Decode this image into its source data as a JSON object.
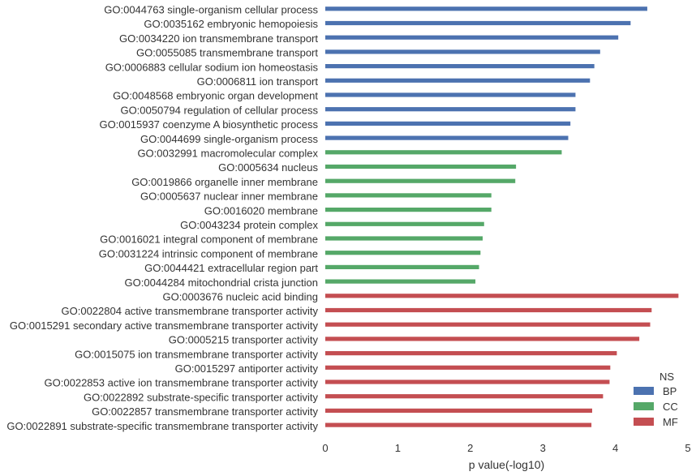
{
  "chart_data": {
    "type": "bar",
    "orientation": "horizontal",
    "xlabel": "p value(-log10)",
    "ylabel": "",
    "xlim": [
      0,
      5
    ],
    "xticks": [
      "0",
      "1",
      "2",
      "3",
      "4",
      "5"
    ],
    "grid": false,
    "legend": {
      "title": "NS",
      "placement": "bottom-right",
      "entries": [
        {
          "name": "BP",
          "color": "#4c72b0"
        },
        {
          "name": "CC",
          "color": "#55a868"
        },
        {
          "name": "MF",
          "color": "#c44e52"
        }
      ]
    },
    "categories": [
      "GO:0044763 single-organism cellular process",
      "GO:0035162 embryonic hemopoiesis",
      "GO:0034220 ion transmembrane transport",
      "GO:0055085 transmembrane transport",
      "GO:0006883 cellular sodium ion homeostasis",
      "GO:0006811 ion transport",
      "GO:0048568 embryonic organ development",
      "GO:0050794 regulation of cellular process",
      "GO:0015937 coenzyme A biosynthetic process",
      "GO:0044699 single-organism process",
      "GO:0032991 macromolecular complex",
      "GO:0005634 nucleus",
      "GO:0019866 organelle inner membrane",
      "GO:0005637 nuclear inner membrane",
      "GO:0016020 membrane",
      "GO:0043234 protein complex",
      "GO:0016021 integral component of membrane",
      "GO:0031224 intrinsic component of membrane",
      "GO:0044421 extracellular region part",
      "GO:0044284 mitochondrial crista junction",
      "GO:0003676 nucleic acid binding",
      "GO:0022804 active transmembrane transporter activity",
      "GO:0015291 secondary active transmembrane transporter activity",
      "GO:0005215 transporter activity",
      "GO:0015075 ion transmembrane transporter activity",
      "GO:0015297 antiporter activity",
      "GO:0022853 active ion transmembrane transporter activity",
      "GO:0022892 substrate-specific transporter activity",
      "GO:0022857 transmembrane transporter activity",
      "GO:0022891 substrate-specific transmembrane transporter activity"
    ],
    "values": [
      4.44,
      4.21,
      4.04,
      3.79,
      3.71,
      3.65,
      3.45,
      3.45,
      3.38,
      3.35,
      3.26,
      2.63,
      2.62,
      2.29,
      2.29,
      2.19,
      2.17,
      2.14,
      2.12,
      2.07,
      4.87,
      4.5,
      4.48,
      4.33,
      4.02,
      3.93,
      3.92,
      3.83,
      3.68,
      3.67
    ],
    "groups": [
      "BP",
      "BP",
      "BP",
      "BP",
      "BP",
      "BP",
      "BP",
      "BP",
      "BP",
      "BP",
      "CC",
      "CC",
      "CC",
      "CC",
      "CC",
      "CC",
      "CC",
      "CC",
      "CC",
      "CC",
      "MF",
      "MF",
      "MF",
      "MF",
      "MF",
      "MF",
      "MF",
      "MF",
      "MF",
      "MF"
    ]
  }
}
